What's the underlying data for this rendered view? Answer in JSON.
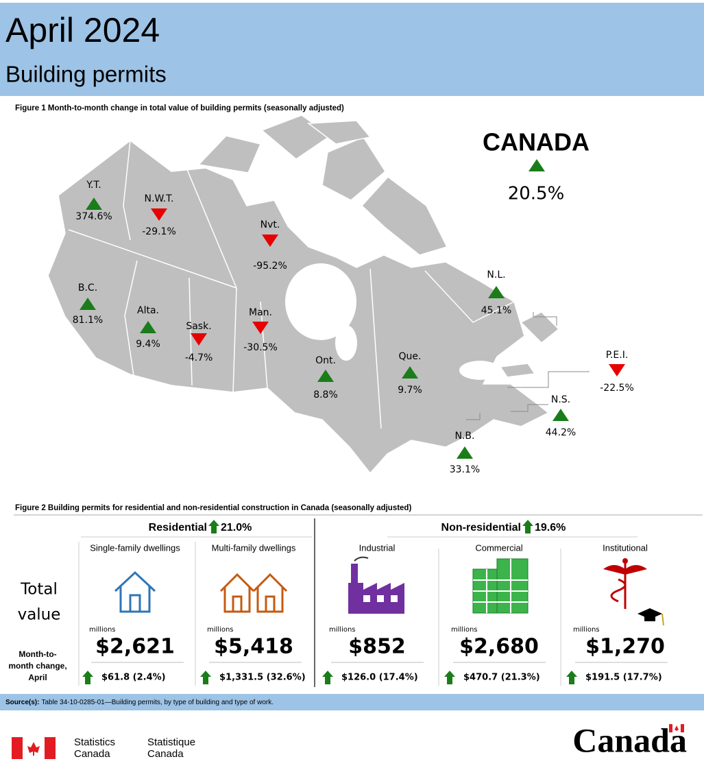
{
  "header": {
    "title": "April 2024",
    "subtitle": "Building permits"
  },
  "figure1": {
    "title": "Figure 1  Month-to-month change in total value of building permits (seasonally adjusted)",
    "national": {
      "label": "CANADA",
      "value": "20.5%"
    },
    "regions": [
      {
        "label": "Y.T.",
        "value": "374.6%"
      },
      {
        "label": "N.W.T.",
        "value": "-29.1%"
      },
      {
        "label": "Nvt.",
        "value": "-95.2%"
      },
      {
        "label": "B.C.",
        "value": "81.1%"
      },
      {
        "label": "Alta.",
        "value": "9.4%"
      },
      {
        "label": "Sask.",
        "value": "-4.7%"
      },
      {
        "label": "Man.",
        "value": "-30.5%"
      },
      {
        "label": "Ont.",
        "value": "8.8%"
      },
      {
        "label": "Que.",
        "value": "9.7%"
      },
      {
        "label": "N.L.",
        "value": "45.1%"
      },
      {
        "label": "P.E.I.",
        "value": "-22.5%"
      },
      {
        "label": "N.S.",
        "value": "44.2%"
      },
      {
        "label": "N.B.",
        "value": "33.1%"
      }
    ]
  },
  "figure2": {
    "title": "Figure 2  Building permits for residential and non-residential construction in Canada (seasonally adjusted)",
    "row_labels": {
      "total": [
        "Total",
        "value"
      ],
      "change": [
        "Month-to-",
        "month change,",
        "April"
      ]
    },
    "groups": [
      {
        "label": "Residential",
        "change": "21.0%",
        "items": [
          {
            "label": "Single-family dwellings",
            "unit": "millions",
            "value": "$2,621",
            "change": "$61.8 (2.4%)"
          },
          {
            "label": "Multi-family dwellings",
            "unit": "millions",
            "value": "$5,418",
            "change": "$1,331.5 (32.6%)"
          }
        ]
      },
      {
        "label": "Non-residential",
        "change": "19.6%",
        "items": [
          {
            "label": "Industrial",
            "unit": "millions",
            "value": "$852",
            "change": "$126.0 (17.4%)"
          },
          {
            "label": "Commercial",
            "unit": "millions",
            "value": "$2,680",
            "change": "$470.7 (21.3%)"
          },
          {
            "label": "Institutional",
            "unit": "millions",
            "value": "$1,270",
            "change": "$191.5 (17.7%)"
          }
        ]
      }
    ]
  },
  "source": {
    "label": "Source(s):",
    "text": "Table 34-10-0285-01—Building permits, by type of building and type of work."
  },
  "footer": {
    "agency_en": [
      "Statistics",
      "Canada"
    ],
    "agency_fr": [
      "Statistique",
      "Canada"
    ],
    "wordmark": "Canada"
  }
}
